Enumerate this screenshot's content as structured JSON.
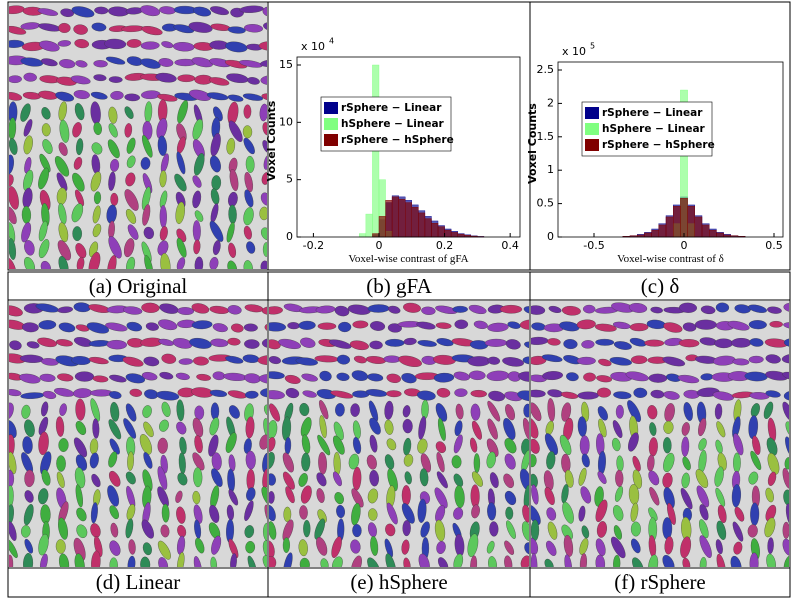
{
  "panels": [
    {
      "caption": "(a) Original"
    },
    {
      "caption": "(b) gFA"
    },
    {
      "caption": "(c) δ"
    },
    {
      "caption": "(d) Linear"
    },
    {
      "caption": "(e) hSphere"
    },
    {
      "caption": "(f) rSphere"
    }
  ],
  "chart_data": [
    {
      "type": "histogram",
      "xlabel": "Voxel-wise contrast of gFA",
      "ylabel": "Voxel Counts",
      "y_scale_label": "x 10",
      "y_scale_exp": "4",
      "legend": "upper left",
      "xlim": [
        -0.25,
        0.43
      ],
      "ylim": [
        0,
        15
      ],
      "xticks": [
        -0.2,
        0,
        0.2,
        0.4
      ],
      "yticks": [
        0,
        5,
        10,
        15
      ],
      "bins": [
        -0.12,
        -0.1,
        -0.08,
        -0.06,
        -0.04,
        -0.02,
        0,
        0.02,
        0.04,
        0.06,
        0.08,
        0.1,
        0.12,
        0.14,
        0.16,
        0.18,
        0.2,
        0.22,
        0.24,
        0.26,
        0.28,
        0.3,
        0.32,
        0.34,
        0.36,
        0.38,
        0.4,
        0.42,
        0.44
      ],
      "series": [
        {
          "name": "rSphere − Linear",
          "color": "#00008b",
          "values": [
            0,
            0,
            0,
            0,
            0,
            0.2,
            1.5,
            3.0,
            3.6,
            3.5,
            3.2,
            2.8,
            2.3,
            1.8,
            1.4,
            1.0,
            0.7,
            0.5,
            0.3,
            0.2,
            0.1,
            0.05,
            0,
            0,
            0,
            0,
            0,
            0
          ]
        },
        {
          "name": "hSphere − Linear",
          "color": "#80ff80",
          "values": [
            0,
            0,
            0,
            0.3,
            2,
            15,
            5,
            0.5,
            0,
            0,
            0,
            0,
            0,
            0,
            0,
            0,
            0,
            0,
            0,
            0,
            0,
            0,
            0,
            0,
            0,
            0,
            0,
            0
          ]
        },
        {
          "name": "rSphere − hSphere",
          "color": "#800000",
          "values": [
            0,
            0,
            0,
            0,
            0,
            0.3,
            1.8,
            3.2,
            3.5,
            3.3,
            3.0,
            2.6,
            2.1,
            1.6,
            1.2,
            0.9,
            0.6,
            0.4,
            0.25,
            0.15,
            0.08,
            0.04,
            0,
            0,
            0,
            0,
            0,
            0
          ]
        }
      ]
    },
    {
      "type": "histogram",
      "xlabel": "Voxel-wise contrast of δ",
      "ylabel": "Voxel Counts",
      "y_scale_label": "x 10",
      "y_scale_exp": "5",
      "legend": "upper left",
      "xlim": [
        -0.7,
        0.55
      ],
      "ylim": [
        0,
        2.5
      ],
      "xticks": [
        -0.5,
        0,
        0.5
      ],
      "yticks": [
        0,
        0.5,
        1,
        1.5,
        2,
        2.5
      ],
      "bins": [
        -0.34,
        -0.3,
        -0.26,
        -0.22,
        -0.18,
        -0.14,
        -0.1,
        -0.06,
        -0.02,
        0.02,
        0.06,
        0.1,
        0.14,
        0.18,
        0.22,
        0.26,
        0.3,
        0.34
      ],
      "series": [
        {
          "name": "rSphere − Linear",
          "color": "#00008b",
          "values": [
            0.01,
            0.02,
            0.04,
            0.07,
            0.12,
            0.2,
            0.32,
            0.48,
            0.6,
            0.48,
            0.32,
            0.2,
            0.12,
            0.07,
            0.04,
            0.02,
            0.01
          ]
        },
        {
          "name": "hSphere − Linear",
          "color": "#80ff80",
          "values": [
            0,
            0,
            0,
            0,
            0,
            0,
            0,
            0.2,
            2.2,
            0.2,
            0,
            0,
            0,
            0,
            0,
            0,
            0
          ]
        },
        {
          "name": "rSphere − hSphere",
          "color": "#800000",
          "values": [
            0.01,
            0.02,
            0.03,
            0.06,
            0.1,
            0.18,
            0.3,
            0.46,
            0.58,
            0.46,
            0.3,
            0.18,
            0.1,
            0.06,
            0.03,
            0.02,
            0.01
          ]
        }
      ]
    }
  ]
}
